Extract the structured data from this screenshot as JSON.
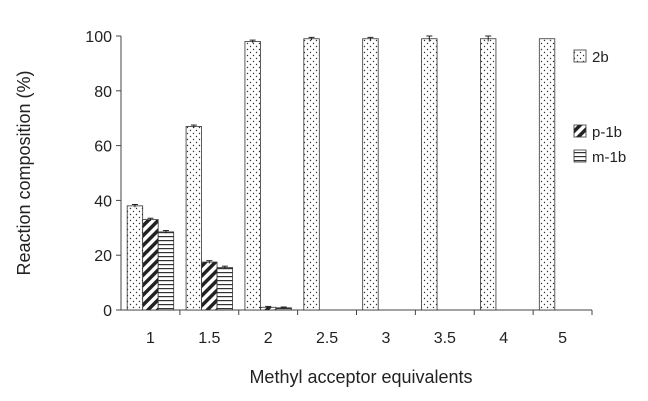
{
  "chart_data": {
    "type": "bar",
    "title": "",
    "xlabel": "Methyl acceptor equivalents",
    "ylabel": "Reaction composition (%)",
    "ylim": [
      0,
      100
    ],
    "yticks": [
      0,
      20,
      40,
      60,
      80,
      100
    ],
    "categories": [
      "1",
      "1.5",
      "2",
      "2.5",
      "3",
      "3.5",
      "4",
      "5"
    ],
    "series": [
      {
        "name": "2b",
        "pattern": "dots",
        "values": [
          38,
          67,
          98,
          99,
          99,
          99,
          99,
          99
        ],
        "errors": [
          0.5,
          0.5,
          0.5,
          0.5,
          0.5,
          1,
          1,
          0
        ]
      },
      {
        "name": "p-1b",
        "pattern": "diagonal",
        "values": [
          33,
          17.5,
          1,
          null,
          null,
          null,
          null,
          null
        ],
        "errors": [
          0.5,
          0.5,
          0.3,
          0,
          0,
          0,
          0,
          0
        ]
      },
      {
        "name": "m-1b",
        "pattern": "horizontal",
        "values": [
          28.5,
          15.5,
          0.8,
          null,
          null,
          null,
          null,
          null
        ],
        "errors": [
          0.5,
          0.5,
          0.3,
          0,
          0,
          0,
          0,
          0
        ]
      }
    ],
    "grid": false,
    "legend_position": "right"
  }
}
